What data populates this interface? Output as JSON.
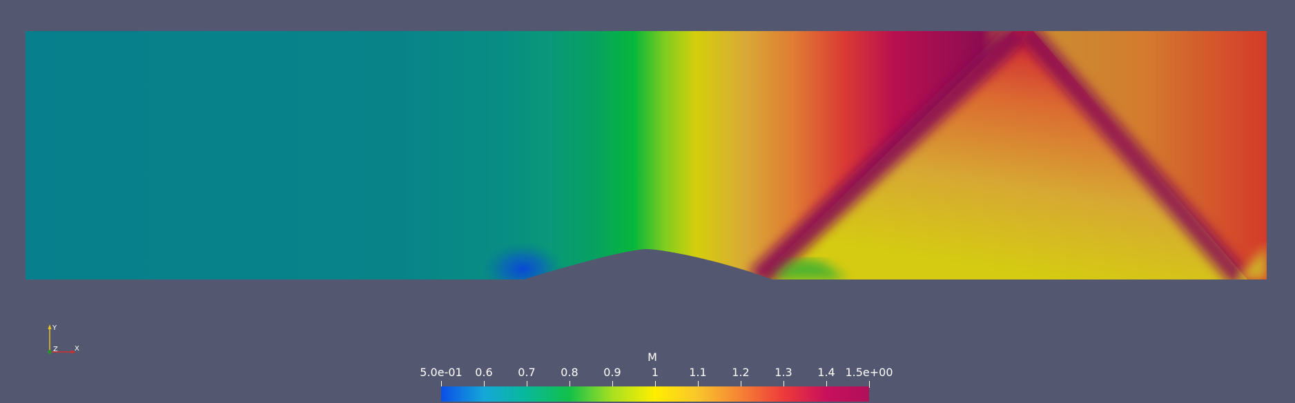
{
  "colormap": {
    "title": "M",
    "min": 0.5,
    "max": 1.5,
    "ticks": [
      {
        "value": 0.5,
        "label": "5.0e-01"
      },
      {
        "value": 0.6,
        "label": "0.6"
      },
      {
        "value": 0.7,
        "label": "0.7"
      },
      {
        "value": 0.8,
        "label": "0.8"
      },
      {
        "value": 0.9,
        "label": "0.9"
      },
      {
        "value": 1.0,
        "label": "1"
      },
      {
        "value": 1.1,
        "label": "1.1"
      },
      {
        "value": 1.2,
        "label": "1.2"
      },
      {
        "value": 1.3,
        "label": "1.3"
      },
      {
        "value": 1.4,
        "label": "1.4"
      },
      {
        "value": 1.5,
        "label": "1.5e+00"
      }
    ],
    "stops": [
      "#0a4fe8",
      "#15a7d8",
      "#08b998",
      "#13c04a",
      "#a8e020",
      "#ffee00",
      "#f9c52b",
      "#f58235",
      "#ee3a3a",
      "#c8105c",
      "#b0105a"
    ]
  },
  "axes": {
    "x_label": "X",
    "y_label": "Y",
    "z_label": "Z"
  },
  "colors": {
    "background": "#535770",
    "x_axis": "#d0312d",
    "y_axis": "#e8c522",
    "z_axis": "#2f8f2f"
  }
}
